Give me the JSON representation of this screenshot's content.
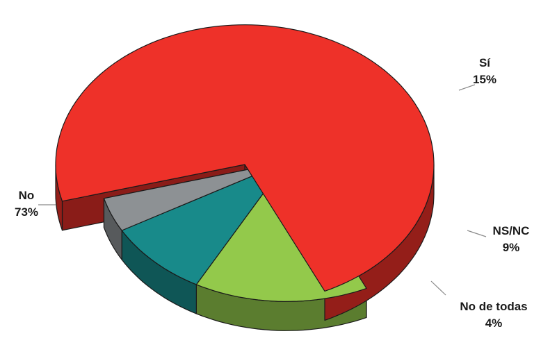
{
  "chart_data": {
    "type": "pie",
    "title": "",
    "legend": "none",
    "slices": [
      {
        "label": "Sí",
        "value": 15,
        "value_label": "15%",
        "color": "#93c94b",
        "exploded": true
      },
      {
        "label": "NS/NC",
        "value": 9,
        "value_label": "9%",
        "color": "#188a8a",
        "exploded": true
      },
      {
        "label": "No de todas",
        "value": 4,
        "value_label": "4%",
        "color": "#8d9194",
        "exploded": true
      },
      {
        "label": "No",
        "value": 73,
        "value_label": "73%",
        "color": "#ee3129",
        "exploded": false
      }
    ]
  }
}
